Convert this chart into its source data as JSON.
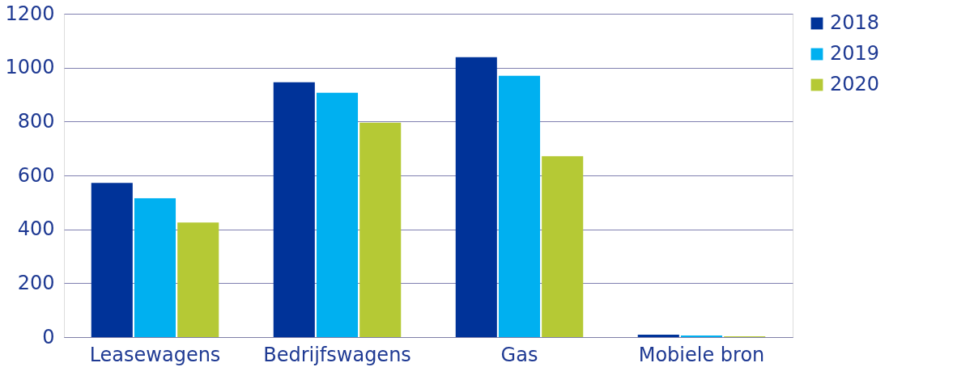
{
  "chart_data": {
    "type": "bar",
    "categories": [
      "Leasewagens",
      "Bedrijfswagens",
      "Gas",
      "Mobiele bron"
    ],
    "series": [
      {
        "name": "2018",
        "color": "#003399",
        "values": [
          572,
          946,
          1039,
          9
        ]
      },
      {
        "name": "2019",
        "color": "#00b0f0",
        "values": [
          515,
          907,
          970,
          6
        ]
      },
      {
        "name": "2020",
        "color": "#b5c935",
        "values": [
          425,
          796,
          671,
          3
        ]
      }
    ],
    "ylim": [
      0,
      1200
    ],
    "yticks": [
      0,
      200,
      400,
      600,
      800,
      1000,
      1200
    ],
    "grid": "y",
    "legend": "right"
  }
}
